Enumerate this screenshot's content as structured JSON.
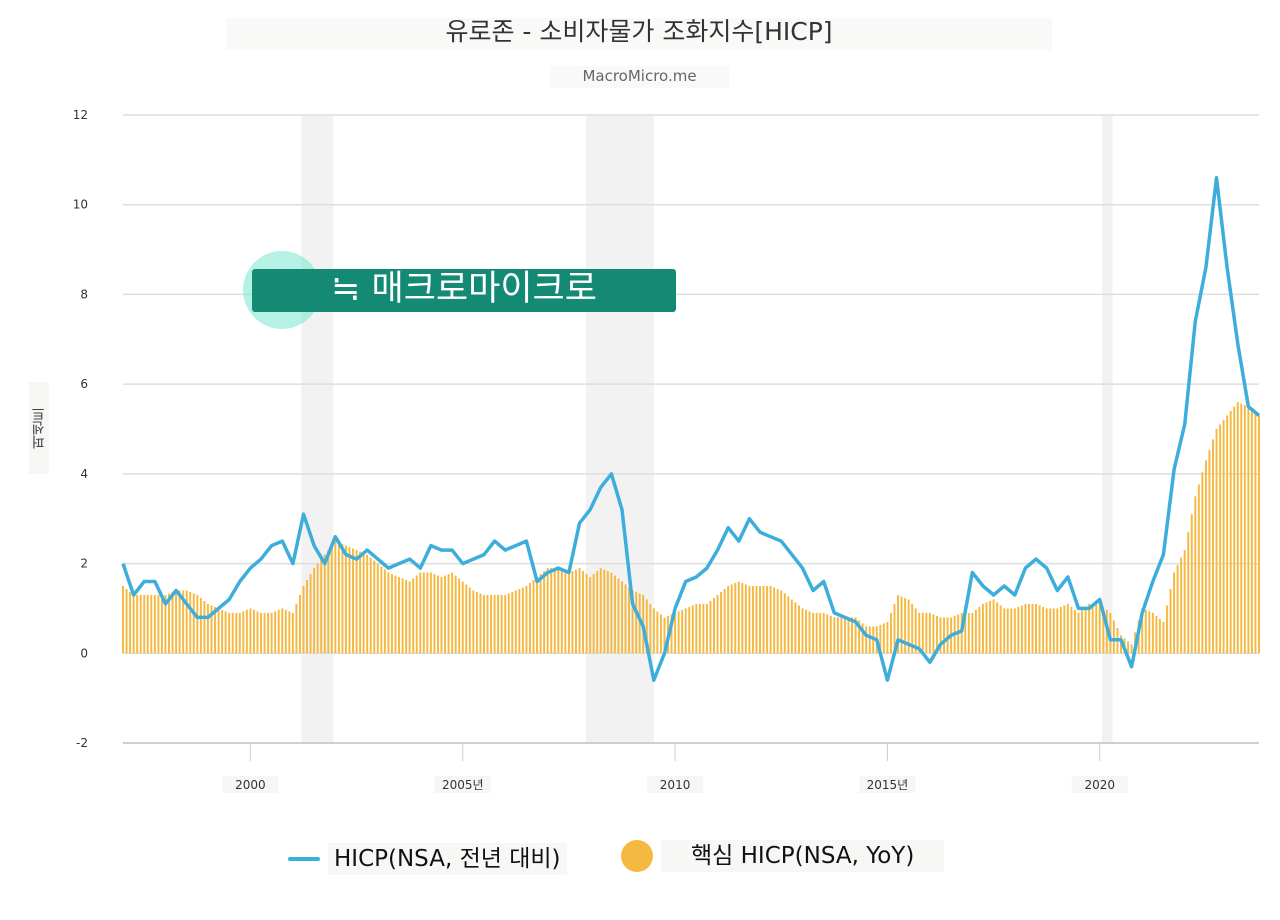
{
  "header": {
    "title": "유로존 - 소비자물가 조화지수[HICP]",
    "subtitle": "MacroMicro.me"
  },
  "watermark": {
    "text": "≒ 매크로마이크로"
  },
  "chart_data": {
    "type": "line",
    "title": "유로존 - 소비자물가 조화지수[HICP]",
    "subtitle": "MacroMicro.me",
    "ylabel": "퍼센트",
    "ylim": [
      -2,
      12
    ],
    "x_range": [
      1997.0,
      2023.75
    ],
    "y_ticks": [
      "-2",
      "0",
      "2",
      "4",
      "6",
      "8",
      "10",
      "12"
    ],
    "x_ticks": [
      {
        "value": 2000,
        "label": "2000"
      },
      {
        "value": 2005,
        "label": "2005년"
      },
      {
        "value": 2010,
        "label": "2010"
      },
      {
        "value": 2015,
        "label": "2015년"
      },
      {
        "value": 2020,
        "label": "2020"
      }
    ],
    "recessions": [
      [
        2001.2,
        2001.95
      ],
      [
        2007.9,
        2009.5
      ],
      [
        2020.05,
        2020.3
      ]
    ],
    "grid": true,
    "legend_position": "bottom-center",
    "series": [
      {
        "name": "HICP(NSA, 전년 대비)",
        "type": "line",
        "color": "#3daedb",
        "x": [
          1997.0,
          1997.25,
          1997.5,
          1997.75,
          1998.0,
          1998.25,
          1998.5,
          1998.75,
          1999.0,
          1999.25,
          1999.5,
          1999.75,
          2000.0,
          2000.25,
          2000.5,
          2000.75,
          2001.0,
          2001.25,
          2001.5,
          2001.75,
          2002.0,
          2002.25,
          2002.5,
          2002.75,
          2003.0,
          2003.25,
          2003.5,
          2003.75,
          2004.0,
          2004.25,
          2004.5,
          2004.75,
          2005.0,
          2005.25,
          2005.5,
          2005.75,
          2006.0,
          2006.25,
          2006.5,
          2006.75,
          2007.0,
          2007.25,
          2007.5,
          2007.75,
          2008.0,
          2008.25,
          2008.5,
          2008.75,
          2009.0,
          2009.25,
          2009.5,
          2009.75,
          2010.0,
          2010.25,
          2010.5,
          2010.75,
          2011.0,
          2011.25,
          2011.5,
          2011.75,
          2012.0,
          2012.25,
          2012.5,
          2012.75,
          2013.0,
          2013.25,
          2013.5,
          2013.75,
          2014.0,
          2014.25,
          2014.5,
          2014.75,
          2015.0,
          2015.25,
          2015.5,
          2015.75,
          2016.0,
          2016.25,
          2016.5,
          2016.75,
          2017.0,
          2017.25,
          2017.5,
          2017.75,
          2018.0,
          2018.25,
          2018.5,
          2018.75,
          2019.0,
          2019.25,
          2019.5,
          2019.75,
          2020.0,
          2020.25,
          2020.5,
          2020.75,
          2021.0,
          2021.25,
          2021.5,
          2021.75,
          2022.0,
          2022.25,
          2022.5,
          2022.75,
          2023.0,
          2023.25,
          2023.5,
          2023.75
        ],
        "values": [
          2.0,
          1.3,
          1.6,
          1.6,
          1.1,
          1.4,
          1.1,
          0.8,
          0.8,
          1.0,
          1.2,
          1.6,
          1.9,
          2.1,
          2.4,
          2.5,
          2.0,
          3.1,
          2.4,
          2.0,
          2.6,
          2.2,
          2.1,
          2.3,
          2.1,
          1.9,
          2.0,
          2.1,
          1.9,
          2.4,
          2.3,
          2.3,
          2.0,
          2.1,
          2.2,
          2.5,
          2.3,
          2.4,
          2.5,
          1.6,
          1.8,
          1.9,
          1.8,
          2.9,
          3.2,
          3.7,
          4.0,
          3.2,
          1.1,
          0.6,
          -0.6,
          0.0,
          1.0,
          1.6,
          1.7,
          1.9,
          2.3,
          2.8,
          2.5,
          3.0,
          2.7,
          2.6,
          2.5,
          2.2,
          1.9,
          1.4,
          1.6,
          0.9,
          0.8,
          0.7,
          0.4,
          0.3,
          -0.6,
          0.3,
          0.2,
          0.1,
          -0.2,
          0.2,
          0.4,
          0.5,
          1.8,
          1.5,
          1.3,
          1.5,
          1.3,
          1.9,
          2.1,
          1.9,
          1.4,
          1.7,
          1.0,
          1.0,
          1.2,
          0.3,
          0.3,
          -0.3,
          0.9,
          1.6,
          2.2,
          4.1,
          5.1,
          7.4,
          8.6,
          10.6,
          8.6,
          6.9,
          5.5,
          5.3
        ]
      },
      {
        "name": "핵심 HICP(NSA, YoY)",
        "type": "bar",
        "color": "#f5b942",
        "x": [
          1997.0,
          1997.25,
          1997.5,
          1997.75,
          1998.0,
          1998.25,
          1998.5,
          1998.75,
          1999.0,
          1999.25,
          1999.5,
          1999.75,
          2000.0,
          2000.25,
          2000.5,
          2000.75,
          2001.0,
          2001.25,
          2001.5,
          2001.75,
          2002.0,
          2002.25,
          2002.5,
          2002.75,
          2003.0,
          2003.25,
          2003.5,
          2003.75,
          2004.0,
          2004.25,
          2004.5,
          2004.75,
          2005.0,
          2005.25,
          2005.5,
          2005.75,
          2006.0,
          2006.25,
          2006.5,
          2006.75,
          2007.0,
          2007.25,
          2007.5,
          2007.75,
          2008.0,
          2008.25,
          2008.5,
          2008.75,
          2009.0,
          2009.25,
          2009.5,
          2009.75,
          2010.0,
          2010.25,
          2010.5,
          2010.75,
          2011.0,
          2011.25,
          2011.5,
          2011.75,
          2012.0,
          2012.25,
          2012.5,
          2012.75,
          2013.0,
          2013.25,
          2013.5,
          2013.75,
          2014.0,
          2014.25,
          2014.5,
          2014.75,
          2015.0,
          2015.25,
          2015.5,
          2015.75,
          2016.0,
          2016.25,
          2016.5,
          2016.75,
          2017.0,
          2017.25,
          2017.5,
          2017.75,
          2018.0,
          2018.25,
          2018.5,
          2018.75,
          2019.0,
          2019.25,
          2019.5,
          2019.75,
          2020.0,
          2020.25,
          2020.5,
          2020.75,
          2021.0,
          2021.25,
          2021.5,
          2021.75,
          2022.0,
          2022.25,
          2022.5,
          2022.75,
          2023.0,
          2023.25,
          2023.5,
          2023.75
        ],
        "values": [
          1.5,
          1.3,
          1.3,
          1.3,
          1.3,
          1.4,
          1.4,
          1.3,
          1.1,
          1.0,
          0.9,
          0.9,
          1.0,
          0.9,
          0.9,
          1.0,
          0.9,
          1.5,
          1.9,
          2.2,
          2.5,
          2.4,
          2.3,
          2.2,
          2.0,
          1.8,
          1.7,
          1.6,
          1.8,
          1.8,
          1.7,
          1.8,
          1.6,
          1.4,
          1.3,
          1.3,
          1.3,
          1.4,
          1.5,
          1.7,
          1.9,
          1.9,
          1.8,
          1.9,
          1.7,
          1.9,
          1.8,
          1.6,
          1.4,
          1.3,
          1.0,
          0.8,
          0.9,
          1.0,
          1.1,
          1.1,
          1.3,
          1.5,
          1.6,
          1.5,
          1.5,
          1.5,
          1.4,
          1.2,
          1.0,
          0.9,
          0.9,
          0.8,
          0.8,
          0.8,
          0.6,
          0.6,
          0.7,
          1.3,
          1.2,
          0.9,
          0.9,
          0.8,
          0.8,
          0.9,
          0.9,
          1.1,
          1.2,
          1.0,
          1.0,
          1.1,
          1.1,
          1.0,
          1.0,
          1.1,
          0.9,
          1.1,
          1.1,
          0.9,
          0.4,
          0.2,
          1.0,
          0.9,
          0.7,
          1.8,
          2.3,
          3.5,
          4.3,
          5.0,
          5.3,
          5.6,
          5.5,
          5.3
        ]
      }
    ]
  },
  "legend": {
    "items": [
      {
        "label": "HICP(NSA, 전년 대비)",
        "color": "#3daedb"
      },
      {
        "label": "핵심 HICP(NSA, YoY)",
        "color": "#f5b942"
      }
    ]
  }
}
